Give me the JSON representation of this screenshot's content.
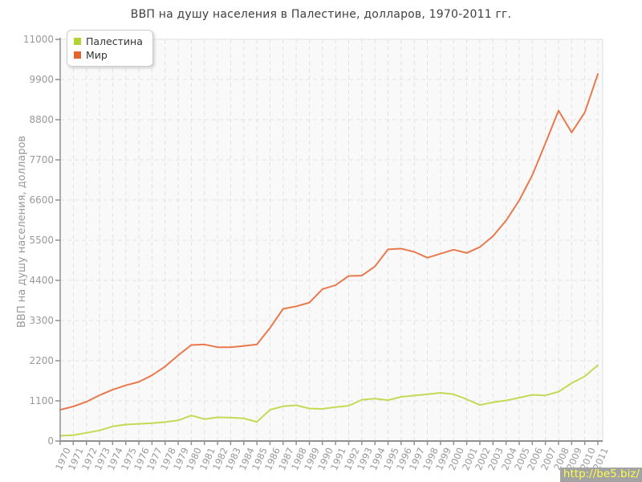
{
  "page": {
    "title": "ВВП на душу населения в Палестине, долларов, 1970-2011 гг."
  },
  "axes": {
    "y_label": "ВВП на душу населения, долларов",
    "y_ticks": [
      0,
      1100,
      2200,
      3300,
      4400,
      5500,
      6600,
      7700,
      8800,
      9900,
      11000
    ]
  },
  "watermark": {
    "text": "http://be5.biz/"
  },
  "colors": {
    "plot_bg": "#f9f9f9",
    "plot_border": "#dcdcdc",
    "grid": "#e2e2e2",
    "axis": "#909090",
    "tick_text": "#999999"
  },
  "chart_data": {
    "type": "line",
    "title": "ВВП на душу населения в Палестине, долларов, 1970-2011 гг.",
    "xlabel": "",
    "ylabel": "ВВП на душу населения, долларов",
    "ylim": [
      0,
      11000
    ],
    "ytick_step": 1100,
    "grid": true,
    "legend_position": "top-left",
    "x": [
      1970,
      1971,
      1972,
      1973,
      1974,
      1975,
      1976,
      1977,
      1978,
      1979,
      1980,
      1981,
      1982,
      1983,
      1984,
      1985,
      1986,
      1987,
      1988,
      1989,
      1990,
      1991,
      1992,
      1993,
      1994,
      1995,
      1996,
      1997,
      1998,
      1999,
      2000,
      2001,
      2002,
      2003,
      2004,
      2005,
      2006,
      2007,
      2008,
      2009,
      2010,
      2011
    ],
    "series": [
      {
        "name": "Палестина",
        "swatch_color": "#b3d233",
        "line_color": "#c3da55",
        "values": [
          145,
          160,
          225,
          290,
          400,
          450,
          470,
          490,
          520,
          565,
          700,
          600,
          650,
          640,
          620,
          525,
          855,
          950,
          980,
          890,
          880,
          930,
          965,
          1130,
          1160,
          1120,
          1210,
          1245,
          1280,
          1320,
          1280,
          1145,
          985,
          1060,
          1110,
          1185,
          1265,
          1250,
          1350,
          1585,
          1770,
          2080
        ]
      },
      {
        "name": "Мир",
        "swatch_color": "#e0662d",
        "line_color": "#e9794d",
        "values": [
          855,
          945,
          1075,
          1255,
          1405,
          1525,
          1620,
          1800,
          2040,
          2350,
          2630,
          2645,
          2570,
          2570,
          2605,
          2645,
          3100,
          3620,
          3690,
          3790,
          4160,
          4270,
          4520,
          4530,
          4780,
          5250,
          5270,
          5180,
          5020,
          5130,
          5240,
          5150,
          5310,
          5610,
          6040,
          6590,
          7280,
          8150,
          9050,
          8450,
          9000,
          10050
        ]
      }
    ]
  }
}
